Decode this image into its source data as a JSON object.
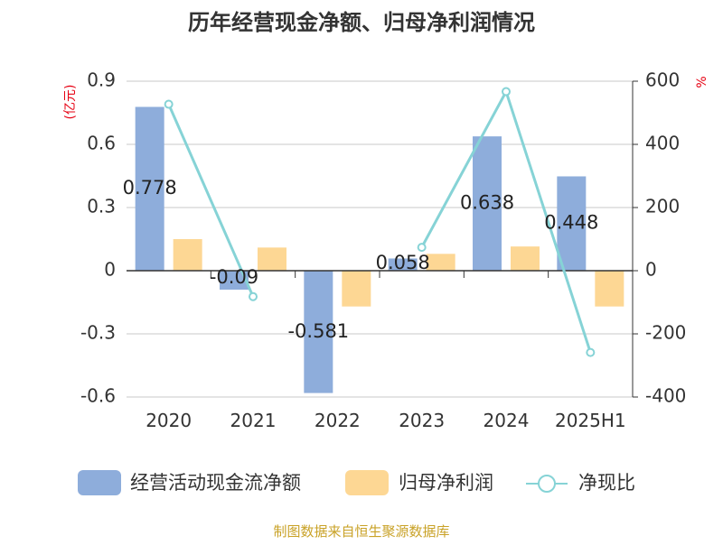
{
  "chart_data": {
    "type": "bar",
    "title": "历年经营现金净额、归母净利润情况",
    "categories": [
      "2020",
      "2021",
      "2022",
      "2023",
      "2024",
      "2025H1"
    ],
    "left_axis": {
      "unit_label": "(亿元)",
      "ylim": [
        -0.6,
        0.9
      ],
      "ticks": [
        -0.6,
        -0.3,
        0,
        0.3,
        0.6,
        0.9
      ],
      "tick_labels": [
        "-0.6",
        "-0.3",
        "0",
        "0.3",
        "0.6",
        "0.9"
      ]
    },
    "right_axis": {
      "unit_label": "%",
      "ylim": [
        -400,
        600
      ],
      "ticks": [
        -400,
        -200,
        0,
        200,
        400,
        600
      ],
      "tick_labels": [
        "-400",
        "-200",
        "0",
        "200",
        "400",
        "600"
      ]
    },
    "series": [
      {
        "name": "经营活动现金流净额",
        "type": "bar",
        "axis": "left",
        "color": "#8EADDB",
        "values": [
          0.778,
          -0.09,
          -0.581,
          0.058,
          0.638,
          0.448
        ],
        "data_labels": [
          "0.778",
          "-0.09",
          "-0.581",
          "0.058",
          "0.638",
          "0.448"
        ]
      },
      {
        "name": "归母净利润",
        "type": "bar",
        "axis": "left",
        "color": "#FDD794",
        "values": [
          0.15,
          0.11,
          -0.17,
          0.08,
          0.115,
          -0.17
        ]
      },
      {
        "name": "净现比",
        "type": "line",
        "axis": "right",
        "color": "#86D3D6",
        "values": [
          527,
          -82,
          null,
          74,
          567,
          -259
        ]
      }
    ],
    "legend_position": "bottom",
    "grid": true
  },
  "source_text": "制图数据来自恒生聚源数据库"
}
